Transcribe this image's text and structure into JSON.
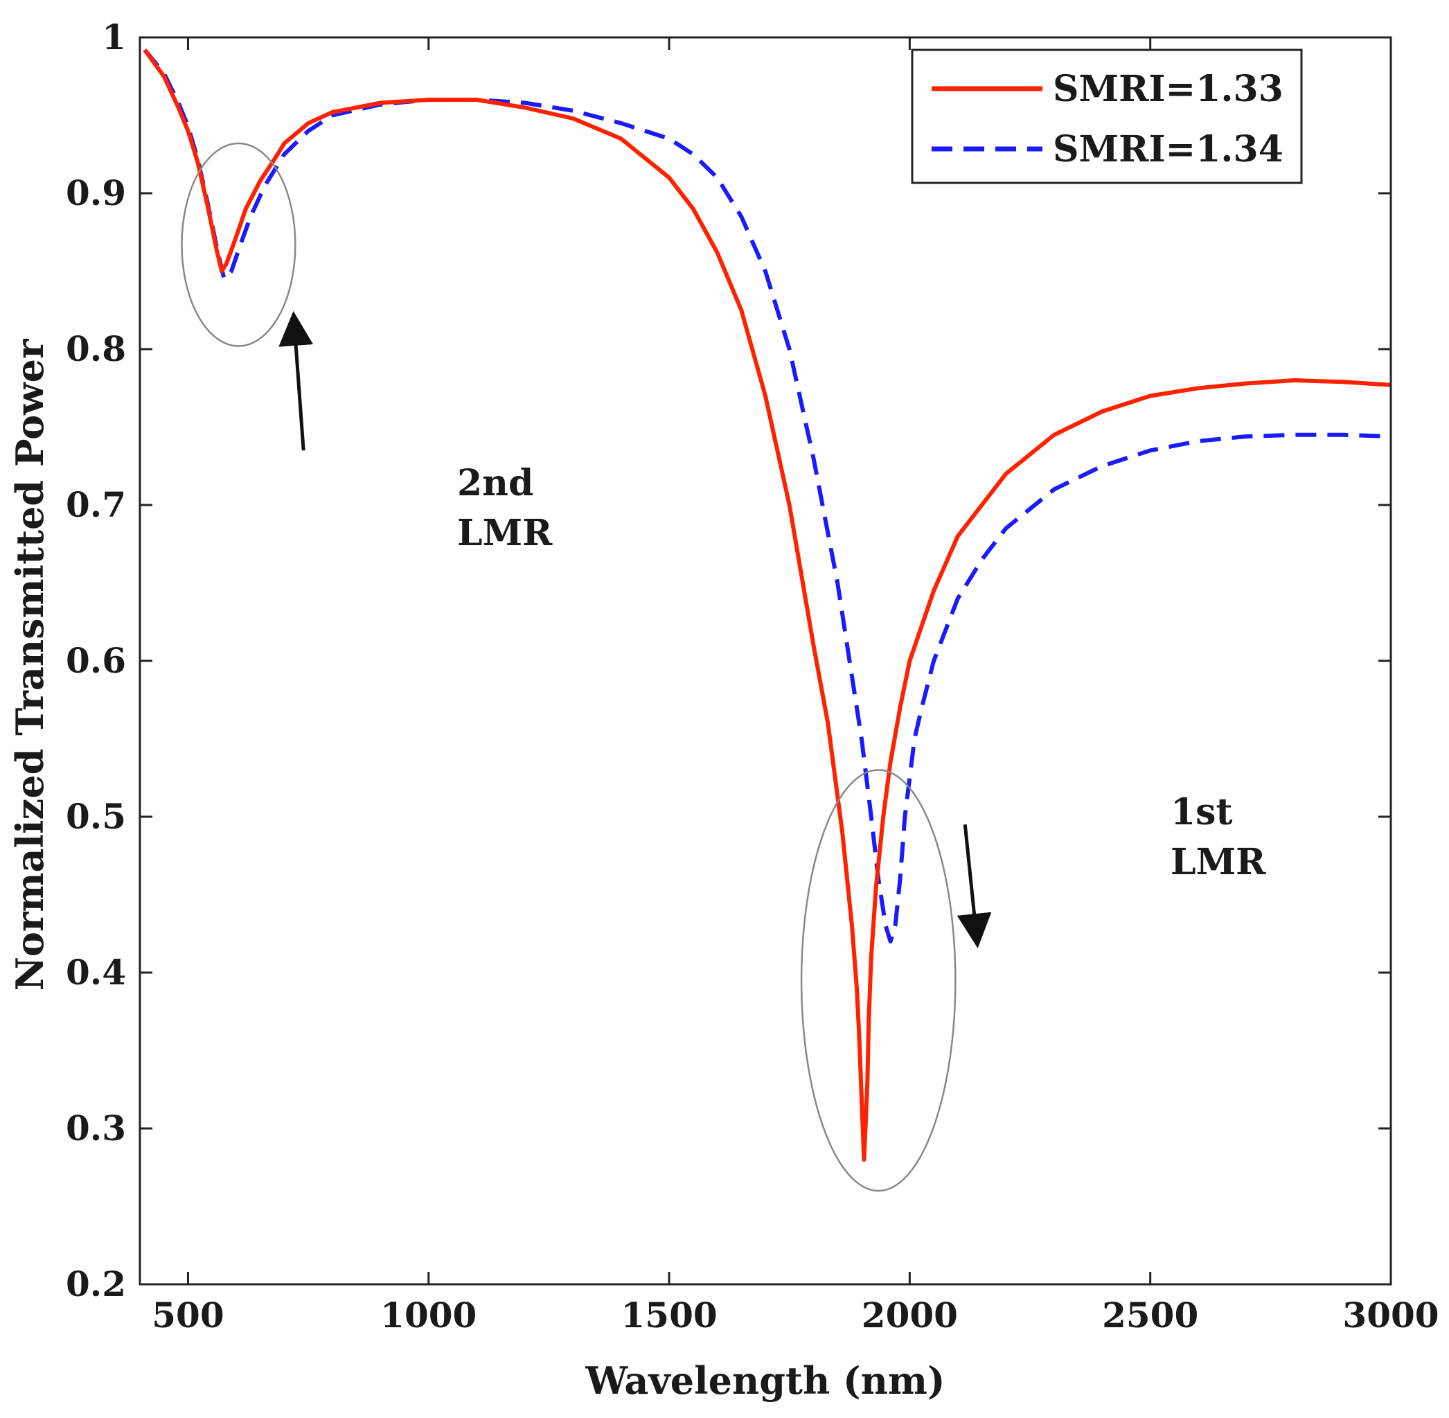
{
  "chart_data": {
    "type": "line",
    "title": "",
    "xlabel": "Wavelength (nm)",
    "ylabel": "Normalized Transmitted Power",
    "xlim": [
      400,
      3000
    ],
    "ylim": [
      0.2,
      1.0
    ],
    "xticks": [
      500,
      1000,
      1500,
      2000,
      2500,
      3000
    ],
    "xtick_labels": [
      "500",
      "1000",
      "1500",
      "2000",
      "2500",
      "3000"
    ],
    "yticks": [
      0.2,
      0.3,
      0.4,
      0.5,
      0.6,
      0.7,
      0.8,
      0.9,
      1.0
    ],
    "ytick_labels": [
      "0.2",
      "0.3",
      "0.4",
      "0.5",
      "0.6",
      "0.7",
      "0.8",
      "0.9",
      "1"
    ],
    "grid": false,
    "legend_position": "top-right",
    "series": [
      {
        "name": "SMRI=1.33",
        "color": "#ff2200",
        "style": "solid",
        "x": [
          410,
          450,
          480,
          500,
          520,
          540,
          560,
          570,
          580,
          600,
          620,
          650,
          680,
          700,
          750,
          800,
          900,
          1000,
          1100,
          1200,
          1300,
          1400,
          1500,
          1550,
          1600,
          1650,
          1700,
          1750,
          1800,
          1830,
          1860,
          1880,
          1890,
          1895,
          1900,
          1905,
          1908,
          1912,
          1915,
          1920,
          1930,
          1945,
          1960,
          1980,
          2000,
          2050,
          2100,
          2200,
          2300,
          2400,
          2500,
          2600,
          2700,
          2800,
          2900,
          3000
        ],
        "y": [
          0.992,
          0.975,
          0.955,
          0.94,
          0.92,
          0.893,
          0.863,
          0.85,
          0.855,
          0.872,
          0.89,
          0.908,
          0.922,
          0.932,
          0.945,
          0.952,
          0.958,
          0.96,
          0.96,
          0.955,
          0.948,
          0.935,
          0.91,
          0.89,
          0.862,
          0.825,
          0.77,
          0.7,
          0.61,
          0.56,
          0.49,
          0.43,
          0.39,
          0.36,
          0.32,
          0.28,
          0.3,
          0.33,
          0.37,
          0.41,
          0.455,
          0.5,
          0.535,
          0.57,
          0.6,
          0.645,
          0.68,
          0.72,
          0.745,
          0.76,
          0.77,
          0.775,
          0.778,
          0.78,
          0.779,
          0.777
        ]
      },
      {
        "name": "SMRI=1.34",
        "color": "#1a1aff",
        "style": "dashed",
        "x": [
          410,
          450,
          480,
          500,
          520,
          540,
          560,
          575,
          590,
          610,
          630,
          660,
          700,
          750,
          800,
          900,
          1000,
          1100,
          1200,
          1300,
          1400,
          1500,
          1550,
          1600,
          1650,
          1700,
          1750,
          1800,
          1850,
          1880,
          1900,
          1920,
          1935,
          1950,
          1960,
          1970,
          1975,
          1980,
          1985,
          1990,
          2000,
          2010,
          2025,
          2050,
          2100,
          2150,
          2200,
          2300,
          2400,
          2500,
          2600,
          2700,
          2800,
          2900,
          3000
        ],
        "y": [
          0.992,
          0.977,
          0.958,
          0.943,
          0.922,
          0.895,
          0.865,
          0.845,
          0.85,
          0.868,
          0.885,
          0.905,
          0.925,
          0.94,
          0.95,
          0.957,
          0.96,
          0.96,
          0.958,
          0.953,
          0.945,
          0.935,
          0.925,
          0.91,
          0.885,
          0.85,
          0.8,
          0.73,
          0.65,
          0.59,
          0.55,
          0.5,
          0.46,
          0.43,
          0.42,
          0.43,
          0.445,
          0.46,
          0.48,
          0.5,
          0.525,
          0.55,
          0.57,
          0.6,
          0.64,
          0.665,
          0.685,
          0.71,
          0.725,
          0.735,
          0.741,
          0.744,
          0.745,
          0.745,
          0.744
        ]
      }
    ],
    "annotations": [
      {
        "text_lines": [
          "2nd",
          "LMR"
        ],
        "ellipse_center": [
          605,
          0.867
        ],
        "ellipse_radius": [
          118,
          0.065
        ],
        "arrow_from": [
          740,
          0.735
        ],
        "arrow_to": [
          720,
          0.82
        ]
      },
      {
        "text_lines": [
          "1st",
          "LMR"
        ],
        "ellipse_center": [
          1935,
          0.395
        ],
        "ellipse_radius": [
          160,
          0.135
        ],
        "arrow_from": [
          2115,
          0.495
        ],
        "arrow_to": [
          2140,
          0.42
        ]
      }
    ]
  }
}
